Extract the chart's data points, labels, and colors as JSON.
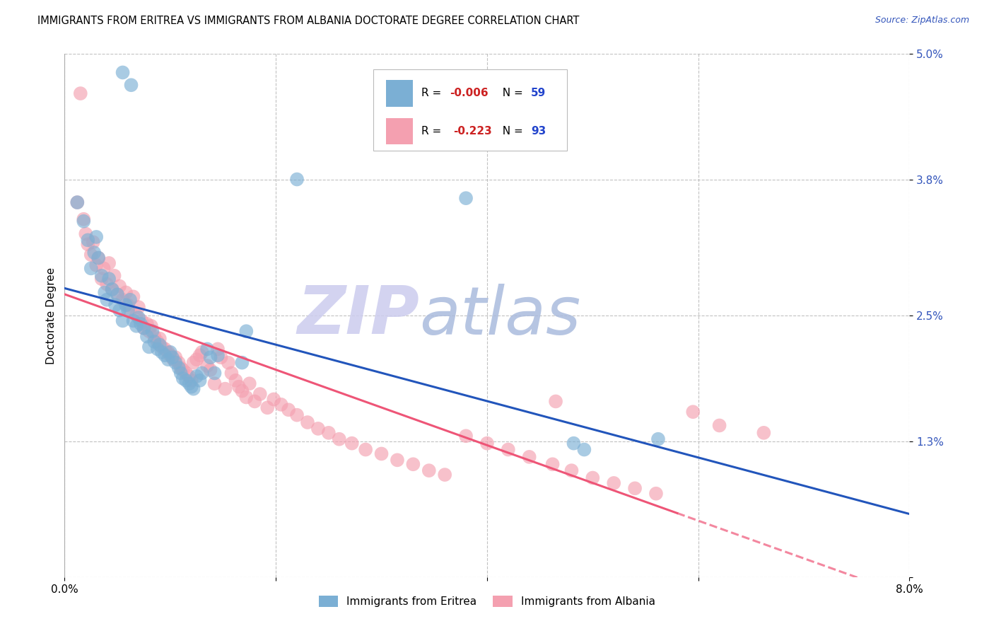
{
  "title": "IMMIGRANTS FROM ERITREA VS IMMIGRANTS FROM ALBANIA DOCTORATE DEGREE CORRELATION CHART",
  "source": "Source: ZipAtlas.com",
  "ylabel": "Doctorate Degree",
  "xmin": 0.0,
  "xmax": 8.0,
  "ymin": 0.0,
  "ymax": 5.0,
  "ytick_vals": [
    0.0,
    1.3,
    2.5,
    3.8,
    5.0
  ],
  "ytick_labels": [
    "",
    "1.3%",
    "2.5%",
    "3.8%",
    "5.0%"
  ],
  "xtick_vals": [
    0.0,
    2.0,
    4.0,
    6.0,
    8.0
  ],
  "xtick_labels": [
    "0.0%",
    "",
    "",
    "",
    "8.0%"
  ],
  "legend_label1": "Immigrants from Eritrea",
  "legend_label2": "Immigrants from Albania",
  "R1": "-0.006",
  "N1": "59",
  "R2": "-0.223",
  "N2": "93",
  "color_eritrea": "#7BAFD4",
  "color_albania": "#F4A0B0",
  "color_eritrea_line": "#2255BB",
  "color_albania_line": "#EE5577",
  "watermark_zip": "ZIP",
  "watermark_atlas": "atlas",
  "background_color": "#FFFFFF",
  "title_fontsize": 10.5,
  "eritrea_x": [
    0.55,
    0.63,
    0.12,
    0.18,
    0.22,
    0.25,
    0.28,
    0.3,
    0.32,
    0.35,
    0.38,
    0.4,
    0.42,
    0.45,
    0.48,
    0.5,
    0.52,
    0.55,
    0.58,
    0.6,
    0.62,
    0.65,
    0.68,
    0.7,
    0.72,
    0.75,
    0.78,
    0.8,
    0.83,
    0.85,
    0.88,
    0.9,
    0.92,
    0.95,
    0.98,
    1.0,
    1.02,
    1.05,
    1.08,
    1.1,
    1.12,
    1.15,
    1.18,
    1.2,
    1.22,
    1.25,
    1.28,
    1.3,
    1.35,
    1.38,
    1.42,
    1.45,
    1.68,
    1.72,
    2.2,
    3.8,
    4.82,
    4.92,
    5.62
  ],
  "eritrea_y": [
    4.82,
    4.7,
    3.58,
    3.4,
    3.22,
    2.95,
    3.1,
    3.25,
    3.05,
    2.88,
    2.72,
    2.65,
    2.85,
    2.75,
    2.6,
    2.7,
    2.55,
    2.45,
    2.6,
    2.55,
    2.65,
    2.45,
    2.4,
    2.48,
    2.42,
    2.38,
    2.3,
    2.2,
    2.35,
    2.25,
    2.18,
    2.22,
    2.15,
    2.12,
    2.08,
    2.15,
    2.1,
    2.05,
    2.0,
    1.95,
    1.9,
    1.88,
    1.85,
    1.82,
    1.8,
    1.92,
    1.88,
    1.95,
    2.18,
    2.1,
    1.95,
    2.12,
    2.05,
    2.35,
    3.8,
    3.62,
    1.28,
    1.22,
    1.32
  ],
  "albania_x": [
    0.12,
    0.15,
    0.18,
    0.2,
    0.22,
    0.25,
    0.27,
    0.3,
    0.32,
    0.35,
    0.37,
    0.4,
    0.42,
    0.45,
    0.47,
    0.5,
    0.52,
    0.55,
    0.58,
    0.6,
    0.62,
    0.65,
    0.68,
    0.7,
    0.73,
    0.75,
    0.78,
    0.8,
    0.82,
    0.85,
    0.88,
    0.9,
    0.92,
    0.95,
    0.98,
    1.0,
    1.03,
    1.05,
    1.08,
    1.1,
    1.12,
    1.15,
    1.18,
    1.2,
    1.22,
    1.25,
    1.28,
    1.3,
    1.35,
    1.38,
    1.42,
    1.45,
    1.48,
    1.52,
    1.55,
    1.58,
    1.62,
    1.65,
    1.68,
    1.72,
    1.75,
    1.8,
    1.85,
    1.92,
    1.98,
    2.05,
    2.12,
    2.2,
    2.3,
    2.4,
    2.5,
    2.6,
    2.72,
    2.85,
    3.0,
    3.15,
    3.3,
    3.45,
    3.6,
    3.8,
    4.0,
    4.2,
    4.4,
    4.62,
    4.8,
    5.0,
    5.2,
    5.4,
    5.6,
    4.65,
    5.95,
    6.2,
    6.62
  ],
  "albania_y": [
    3.58,
    4.62,
    3.42,
    3.28,
    3.18,
    3.08,
    3.2,
    2.98,
    3.05,
    2.85,
    2.95,
    2.8,
    3.0,
    2.75,
    2.88,
    2.7,
    2.78,
    2.65,
    2.72,
    2.6,
    2.55,
    2.68,
    2.5,
    2.58,
    2.45,
    2.38,
    2.42,
    2.35,
    2.4,
    2.3,
    2.25,
    2.28,
    2.2,
    2.18,
    2.15,
    2.12,
    2.08,
    2.1,
    2.05,
    2.0,
    1.98,
    1.95,
    1.92,
    1.88,
    2.05,
    2.08,
    2.12,
    2.15,
    2.02,
    1.98,
    1.85,
    2.18,
    2.1,
    1.8,
    2.05,
    1.95,
    1.88,
    1.82,
    1.78,
    1.72,
    1.85,
    1.68,
    1.75,
    1.62,
    1.7,
    1.65,
    1.6,
    1.55,
    1.48,
    1.42,
    1.38,
    1.32,
    1.28,
    1.22,
    1.18,
    1.12,
    1.08,
    1.02,
    0.98,
    1.35,
    1.28,
    1.22,
    1.15,
    1.08,
    1.02,
    0.95,
    0.9,
    0.85,
    0.8,
    1.68,
    1.58,
    1.45,
    1.38
  ]
}
